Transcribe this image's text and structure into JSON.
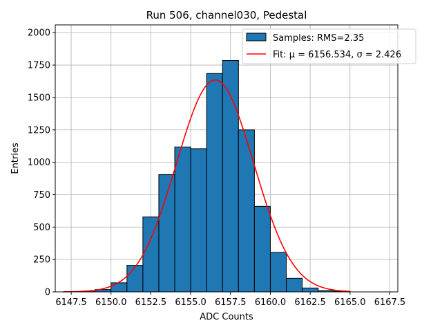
{
  "chart_data": {
    "type": "bar",
    "title": "Run 506, channel030, Pedestal",
    "xlabel": "ADC Counts",
    "ylabel": "Entries",
    "xlim": [
      6146.5,
      6168.0
    ],
    "ylim": [
      0,
      2060
    ],
    "xticks": [
      6147.5,
      6150.0,
      6152.5,
      6155.0,
      6157.5,
      6160.0,
      6162.5,
      6165.0,
      6167.5
    ],
    "xtick_labels": [
      "6147.5",
      "6150.0",
      "6152.5",
      "6155.0",
      "6157.5",
      "6160.0",
      "6162.5",
      "6165.0",
      "6167.5"
    ],
    "yticks": [
      0,
      250,
      500,
      750,
      1000,
      1250,
      1500,
      1750,
      2000
    ],
    "ytick_labels": [
      "0",
      "250",
      "500",
      "750",
      "1000",
      "1250",
      "1500",
      "1750",
      "2000"
    ],
    "grid": true,
    "legend_position": "top-right",
    "histogram": {
      "name": "Samples: RMS=2.35",
      "color": "#1f77b4",
      "bins": [
        {
          "x0": 6147.0,
          "x1": 6148.0,
          "value": 0
        },
        {
          "x0": 6148.0,
          "x1": 6149.0,
          "value": 2
        },
        {
          "x0": 6149.0,
          "x1": 6150.0,
          "value": 18
        },
        {
          "x0": 6150.0,
          "x1": 6151.0,
          "value": 70
        },
        {
          "x0": 6151.0,
          "x1": 6152.0,
          "value": 205
        },
        {
          "x0": 6152.0,
          "x1": 6153.0,
          "value": 578
        },
        {
          "x0": 6153.0,
          "x1": 6154.0,
          "value": 905
        },
        {
          "x0": 6154.0,
          "x1": 6155.0,
          "value": 1118
        },
        {
          "x0": 6155.0,
          "x1": 6156.0,
          "value": 1105
        },
        {
          "x0": 6156.0,
          "x1": 6157.0,
          "value": 1685
        },
        {
          "x0": 6157.0,
          "x1": 6158.0,
          "value": 1785
        },
        {
          "x0": 6158.0,
          "x1": 6159.0,
          "value": 1250
        },
        {
          "x0": 6159.0,
          "x1": 6160.0,
          "value": 660
        },
        {
          "x0": 6160.0,
          "x1": 6161.0,
          "value": 305
        },
        {
          "x0": 6161.0,
          "x1": 6162.0,
          "value": 105
        },
        {
          "x0": 6162.0,
          "x1": 6163.0,
          "value": 30
        },
        {
          "x0": 6163.0,
          "x1": 6164.0,
          "value": 10
        },
        {
          "x0": 6164.0,
          "x1": 6165.0,
          "value": 4
        }
      ]
    },
    "fit": {
      "name": "Fit: μ = 6156.534, σ = 2.426",
      "color": "#ff0000",
      "type": "gaussian",
      "mu": 6156.534,
      "sigma": 2.426,
      "amplitude": 1635,
      "x_range": [
        6147.0,
        6165.0
      ]
    }
  }
}
